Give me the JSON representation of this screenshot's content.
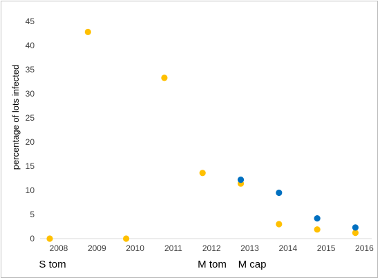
{
  "chart_data": {
    "type": "scatter",
    "title": "",
    "ylabel": "percentage of lots infected",
    "xlabel": "",
    "ylim": [
      0,
      45
    ],
    "yticks": [
      "0",
      "5",
      "10",
      "15",
      "20",
      "25",
      "30",
      "35",
      "40",
      "45"
    ],
    "xticks": [
      "2008",
      "2009",
      "2010",
      "2011",
      "2012",
      "2013",
      "2014",
      "2015",
      "2016"
    ],
    "grid": false,
    "series": [
      {
        "color": "#FFC000",
        "x": [
          2008,
          2009,
          2010,
          2011,
          2012,
          2013,
          2014,
          2015,
          2016
        ],
        "y": [
          0,
          42.8,
          0,
          33.3,
          13.6,
          11.4,
          3.0,
          1.9,
          1.2
        ]
      },
      {
        "color": "#0070C0",
        "x": [
          2013,
          2014,
          2015,
          2016
        ],
        "y": [
          12.2,
          9.5,
          4.2,
          2.3
        ]
      }
    ],
    "annotations": [
      {
        "text": "S tom",
        "at_year": 2008
      },
      {
        "text": "M tom",
        "at_year": 2012
      },
      {
        "text": "M cap",
        "at_year": 2013
      }
    ]
  }
}
